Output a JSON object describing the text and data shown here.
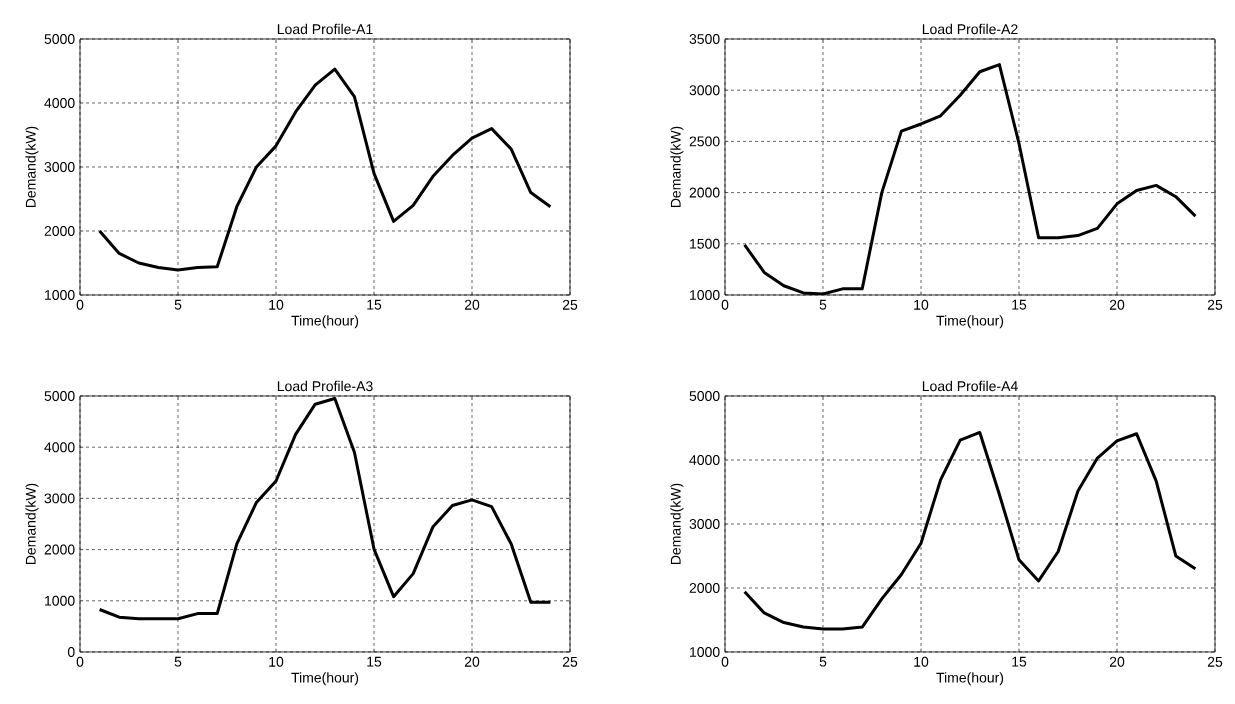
{
  "chart_data": [
    {
      "type": "line",
      "title": "Load Profile-A1",
      "xlabel": "Time(hour)",
      "ylabel": "Demand(kW)",
      "color": "#000000",
      "grid": true,
      "x": [
        1,
        2,
        3,
        4,
        5,
        6,
        7,
        8,
        9,
        10,
        11,
        12,
        13,
        14,
        15,
        16,
        17,
        18,
        19,
        20,
        21,
        22,
        23,
        24
      ],
      "values": [
        2000,
        1650,
        1500,
        1430,
        1390,
        1430,
        1440,
        2380,
        3000,
        3330,
        3860,
        4280,
        4530,
        4100,
        2900,
        2150,
        2400,
        2850,
        3180,
        3450,
        3600,
        3280,
        2600,
        2380
      ],
      "xlim": [
        0,
        25
      ],
      "xticks": [
        0,
        5,
        10,
        15,
        20,
        25
      ],
      "ylim": [
        1000,
        5000
      ],
      "yticks": [
        1000,
        2000,
        3000,
        4000,
        5000
      ]
    },
    {
      "type": "line",
      "title": "Load Profile-A2",
      "xlabel": "Time(hour)",
      "ylabel": "Demand(kW)",
      "color": "#000000",
      "grid": true,
      "x": [
        1,
        2,
        3,
        4,
        5,
        6,
        7,
        8,
        9,
        10,
        11,
        12,
        13,
        14,
        15,
        16,
        17,
        18,
        19,
        20,
        21,
        22,
        23,
        24
      ],
      "values": [
        1490,
        1220,
        1090,
        1020,
        1010,
        1060,
        1060,
        2000,
        2600,
        2670,
        2750,
        2950,
        3180,
        3250,
        2480,
        1560,
        1560,
        1580,
        1650,
        1890,
        2020,
        2070,
        1960,
        1770
      ],
      "xlim": [
        0,
        25
      ],
      "xticks": [
        0,
        5,
        10,
        15,
        20,
        25
      ],
      "ylim": [
        1000,
        3500
      ],
      "yticks": [
        1000,
        1500,
        2000,
        2500,
        3000,
        3500
      ]
    },
    {
      "type": "line",
      "title": "Load Profile-A3",
      "xlabel": "Time(hour)",
      "ylabel": "Demand(kW)",
      "color": "#000000",
      "grid": true,
      "x": [
        1,
        2,
        3,
        4,
        5,
        6,
        7,
        8,
        9,
        10,
        11,
        12,
        13,
        14,
        15,
        16,
        17,
        18,
        19,
        20,
        21,
        22,
        23,
        24
      ],
      "values": [
        830,
        680,
        650,
        650,
        650,
        750,
        750,
        2110,
        2920,
        3340,
        4250,
        4840,
        4950,
        3900,
        2010,
        1080,
        1530,
        2440,
        2860,
        2970,
        2840,
        2110,
        970,
        970
      ],
      "xlim": [
        0,
        25
      ],
      "xticks": [
        0,
        5,
        10,
        15,
        20,
        25
      ],
      "ylim": [
        0,
        5000
      ],
      "yticks": [
        0,
        1000,
        2000,
        3000,
        4000,
        5000
      ]
    },
    {
      "type": "line",
      "title": "Load Profile-A4",
      "xlabel": "Time(hour)",
      "ylabel": "Demand(kW)",
      "color": "#000000",
      "grid": true,
      "x": [
        1,
        2,
        3,
        4,
        5,
        6,
        7,
        8,
        9,
        10,
        11,
        12,
        13,
        14,
        15,
        16,
        17,
        18,
        19,
        20,
        21,
        22,
        23,
        24
      ],
      "values": [
        1940,
        1610,
        1460,
        1390,
        1360,
        1360,
        1390,
        1830,
        2210,
        2700,
        3690,
        4310,
        4430,
        3460,
        2440,
        2110,
        2570,
        3510,
        4030,
        4300,
        4410,
        3670,
        2500,
        2300
      ],
      "xlim": [
        0,
        25
      ],
      "xticks": [
        0,
        5,
        10,
        15,
        20,
        25
      ],
      "ylim": [
        1000,
        5000
      ],
      "yticks": [
        1000,
        2000,
        3000,
        4000,
        5000
      ]
    }
  ]
}
